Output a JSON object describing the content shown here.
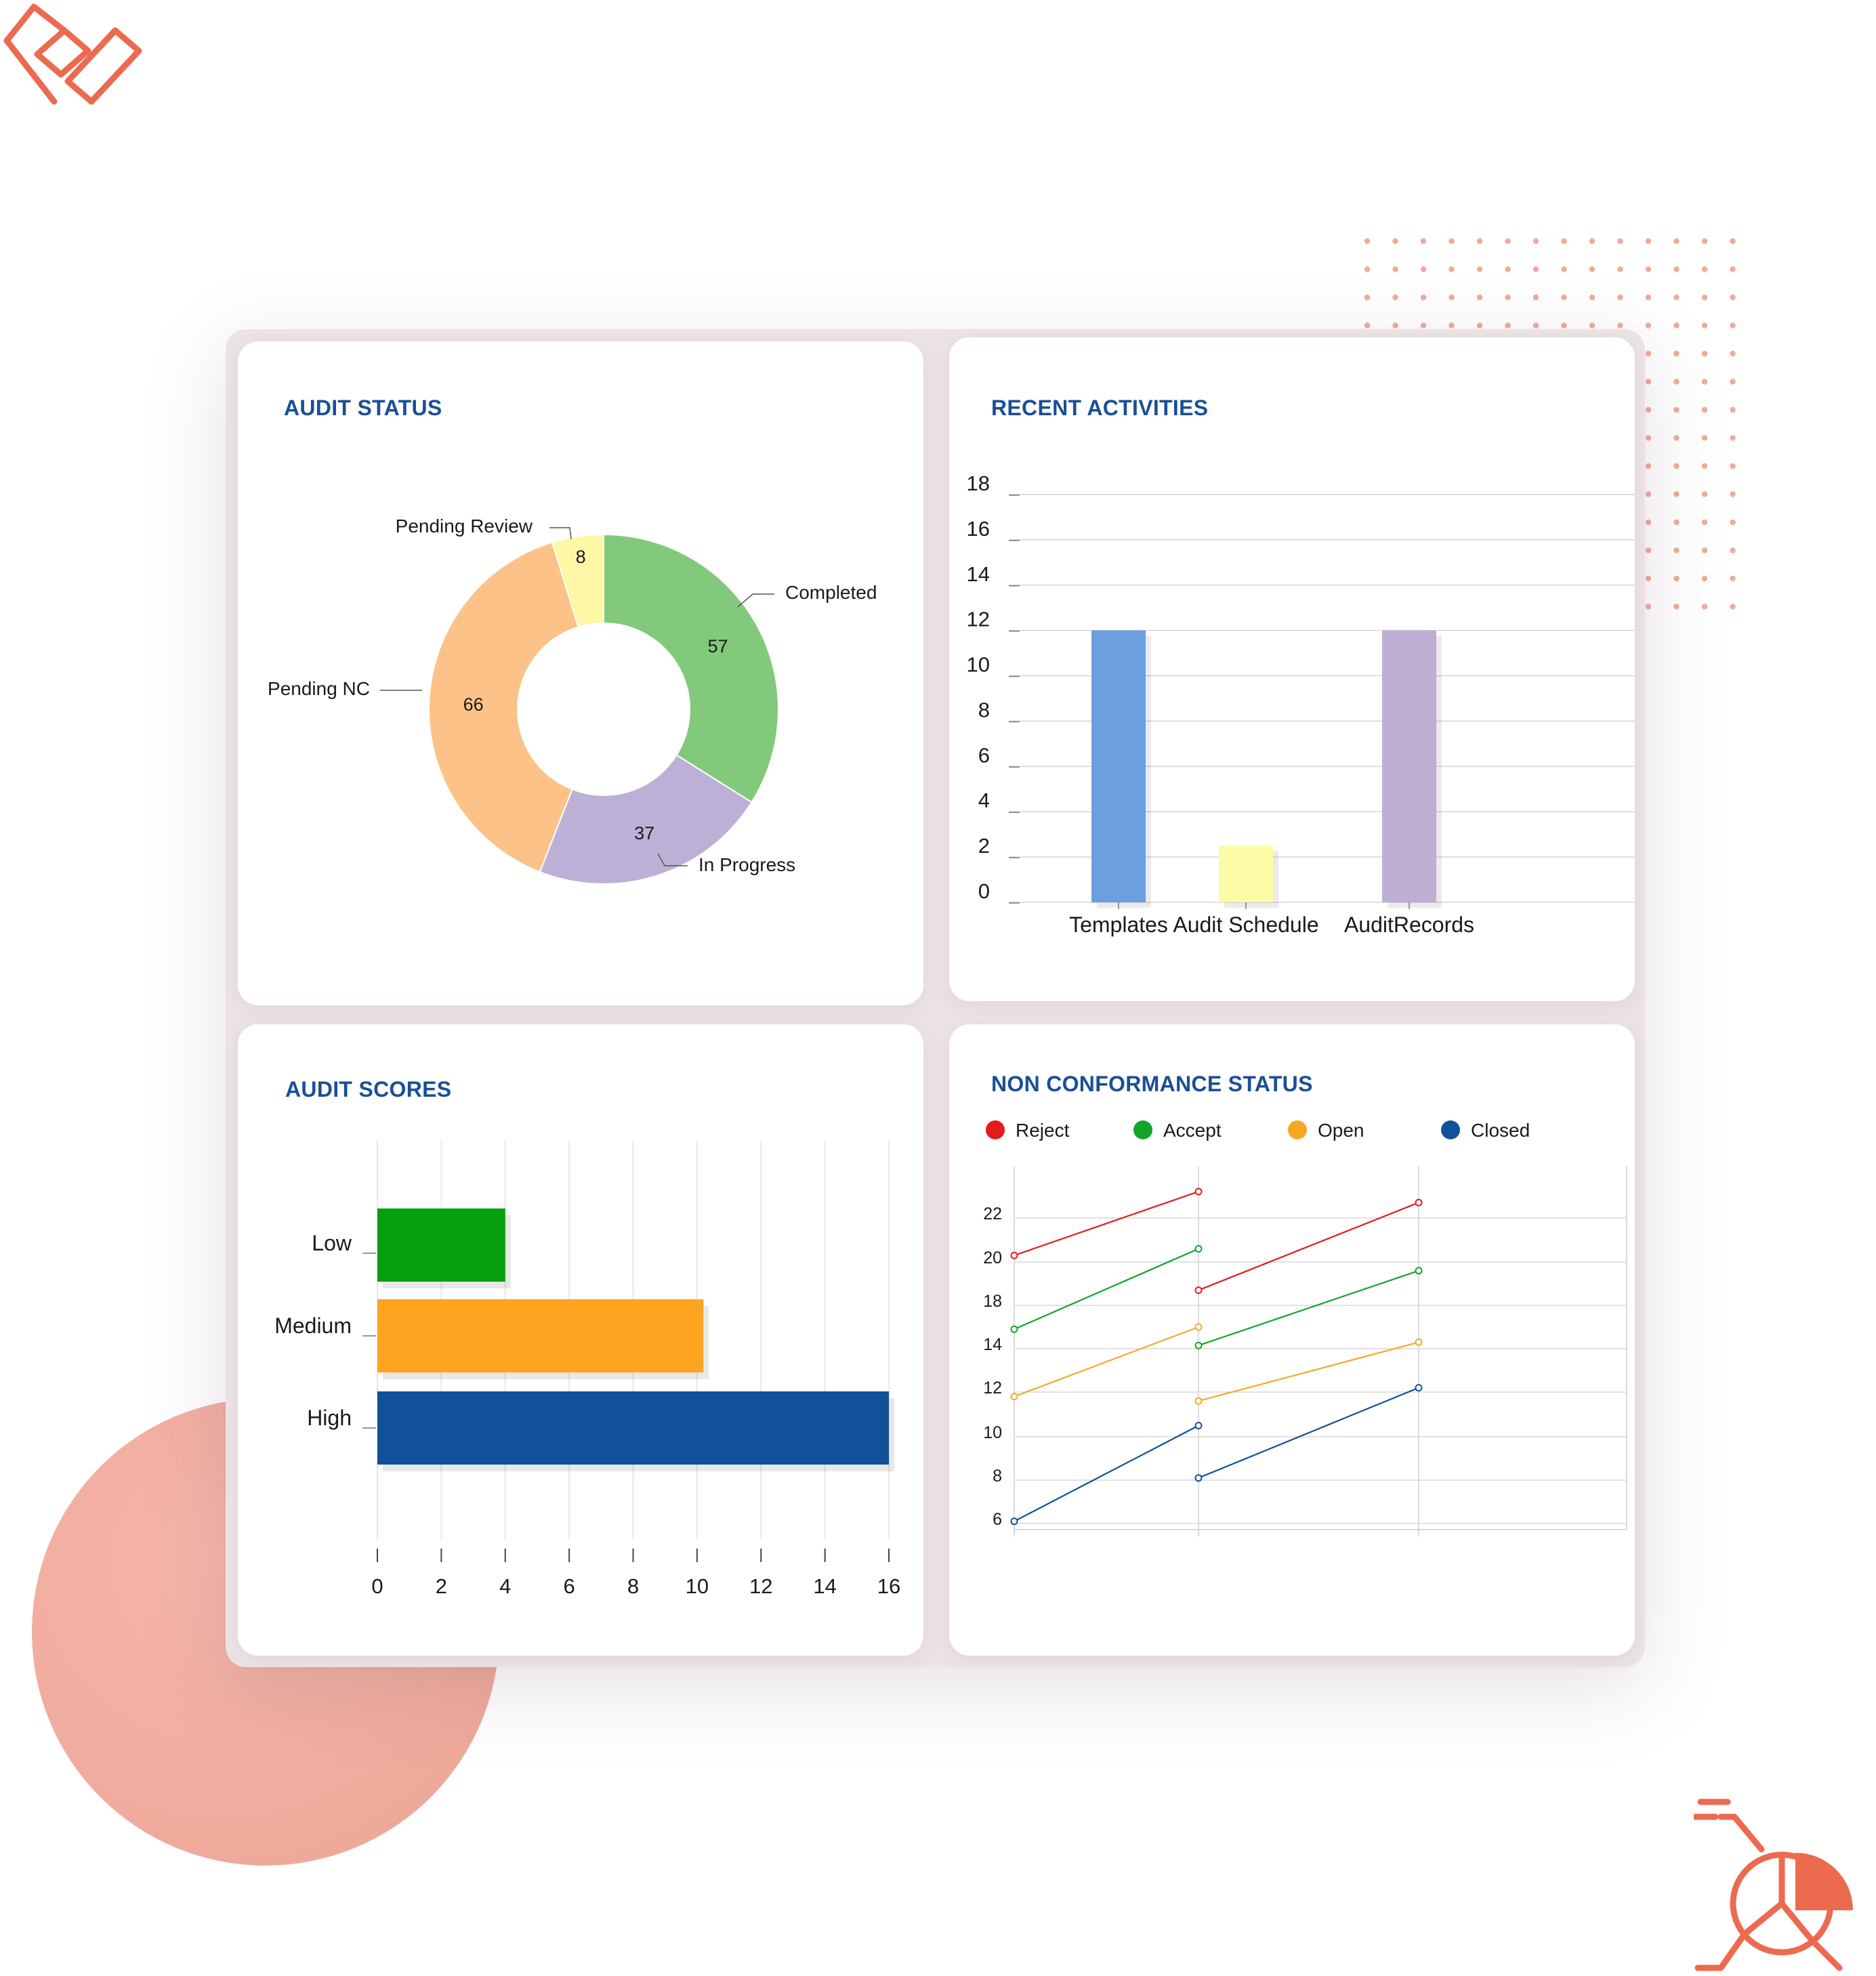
{
  "colors": {
    "title": "#1a4f97",
    "completed": "#82c97c",
    "in_progress": "#bdb0d6",
    "pending_nc": "#fcc287",
    "pending_review": "#fdf7a6",
    "templates": "#6b9fdf",
    "audit_schedule": "#fefba6",
    "audit_records": "#bfaed4",
    "low": "#04a00e",
    "medium": "#fea421",
    "high": "#10519a",
    "reject": "#e51a1a",
    "accept": "#12a52a",
    "open": "#f7a823",
    "closed": "#12509c",
    "accent": "#ec6a4f"
  },
  "icons": {
    "top_left": "logo-mark-icon",
    "bottom_right": "pie-chart-icon"
  },
  "audit_status": {
    "title": "AUDIT STATUS",
    "chart_data": {
      "type": "pie",
      "donut": true,
      "slices": [
        {
          "label": "Completed",
          "value": 57
        },
        {
          "label": "In Progress",
          "value": 37
        },
        {
          "label": "Pending NC",
          "value": 66
        },
        {
          "label": "Pending Review",
          "value": 8
        }
      ]
    }
  },
  "recent_activities": {
    "title": "RECENT ACTIVITIES",
    "chart_data": {
      "type": "bar",
      "categories": [
        "Templates",
        "Audit Schedule",
        "AuditRecords"
      ],
      "values": [
        12,
        2.5,
        12
      ],
      "ylim": [
        0,
        18
      ],
      "yticks": [
        0,
        2,
        4,
        6,
        8,
        10,
        12,
        14,
        16,
        18
      ],
      "grid": true
    }
  },
  "audit_scores": {
    "title": "AUDIT SCORES",
    "chart_data": {
      "type": "bar",
      "orientation": "horizontal",
      "categories": [
        "Low",
        "Medium",
        "High"
      ],
      "values": [
        4,
        10.2,
        16
      ],
      "xlim": [
        0,
        16
      ],
      "xticks": [
        0,
        2,
        4,
        6,
        8,
        10,
        12,
        14,
        16
      ],
      "grid": true
    }
  },
  "non_conformance": {
    "title": "NON CONFORMANCE STATUS",
    "chart_data": {
      "type": "line",
      "legend": [
        "Reject",
        "Accept",
        "Open",
        "Closed"
      ],
      "legend_position": "top",
      "yticks": [
        6,
        8,
        10,
        12,
        14,
        18,
        20,
        22
      ],
      "grid": true,
      "series": [
        {
          "name": "Reject",
          "segments": [
            [
              [
                0,
                20.3
              ],
              [
                1,
                23.2
              ]
            ],
            [
              [
                1,
                18.7
              ],
              [
                2,
                22.7
              ]
            ]
          ]
        },
        {
          "name": "Accept",
          "segments": [
            [
              [
                0,
                15.8
              ],
              [
                1,
                20.6
              ]
            ],
            [
              [
                1,
                14.3
              ],
              [
                2,
                19.6
              ]
            ]
          ]
        },
        {
          "name": "Open",
          "segments": [
            [
              [
                0,
                11.8
              ],
              [
                1,
                16.0
              ]
            ],
            [
              [
                1,
                11.6
              ],
              [
                2,
                14.6
              ]
            ]
          ]
        },
        {
          "name": "Closed",
          "segments": [
            [
              [
                0,
                6.1
              ],
              [
                1,
                10.5
              ]
            ],
            [
              [
                1,
                8.1
              ],
              [
                2,
                12.2
              ]
            ]
          ]
        }
      ]
    }
  }
}
